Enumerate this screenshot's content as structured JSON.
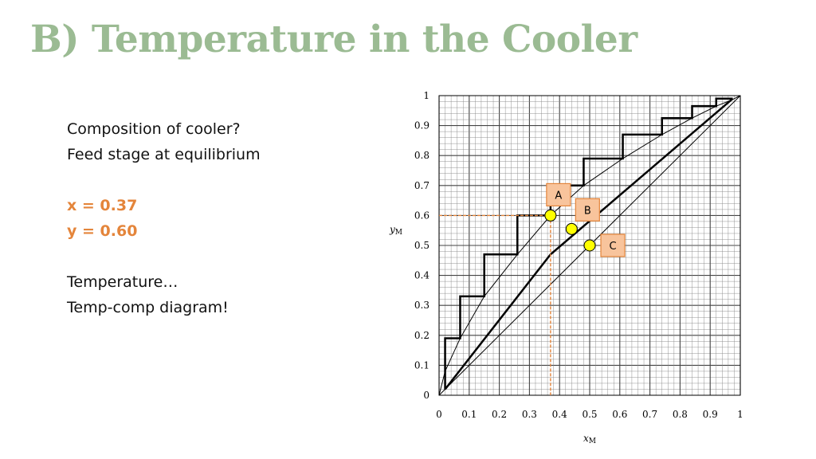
{
  "slide": {
    "title": "B) Temperature in the Cooler",
    "lines": [
      "Composition of cooler?",
      "Feed stage at equilibrium"
    ],
    "x_value": "x = 0.37",
    "y_value": "y = 0.60",
    "lines2": [
      "Temperature…",
      "Temp-comp diagram!"
    ]
  },
  "colors": {
    "title": "#9bbb93",
    "accent": "#e4853b",
    "marker": "#ffff00",
    "label_box": "#f8c49c"
  },
  "chart_data": {
    "type": "line",
    "xlabel": "x",
    "xlabel_sub": "M",
    "ylabel": "y",
    "ylabel_sub": "M",
    "xlim": [
      0,
      1
    ],
    "ylim": [
      0,
      1
    ],
    "grid": true,
    "x_ticks": [
      "0",
      "0.1",
      "0.2",
      "0.3",
      "0.4",
      "0.5",
      "0.6",
      "0.7",
      "0.8",
      "0.9",
      "1"
    ],
    "y_ticks": [
      "0",
      "0.1",
      "0.2",
      "0.3",
      "0.4",
      "0.5",
      "0.6",
      "0.7",
      "0.8",
      "0.9",
      "1"
    ],
    "equilibrium_curve": [
      [
        0,
        0
      ],
      [
        0.02,
        0.08
      ],
      [
        0.07,
        0.19
      ],
      [
        0.15,
        0.33
      ],
      [
        0.26,
        0.47
      ],
      [
        0.37,
        0.6
      ],
      [
        0.48,
        0.7
      ],
      [
        0.61,
        0.79
      ],
      [
        0.74,
        0.87
      ],
      [
        0.84,
        0.925
      ],
      [
        0.92,
        0.965
      ],
      [
        0.97,
        0.985
      ],
      [
        1,
        1
      ]
    ],
    "operating_line": [
      [
        0.02,
        0.02
      ],
      [
        0.37,
        0.47
      ],
      [
        0.975,
        0.99
      ]
    ],
    "diagonal": [
      [
        0,
        0
      ],
      [
        1,
        1
      ]
    ],
    "stages": [
      [
        0.975,
        0.99
      ],
      [
        0.92,
        0.99
      ],
      [
        0.92,
        0.965
      ],
      [
        0.84,
        0.965
      ],
      [
        0.84,
        0.925
      ],
      [
        0.74,
        0.925
      ],
      [
        0.74,
        0.87
      ],
      [
        0.61,
        0.87
      ],
      [
        0.61,
        0.79
      ],
      [
        0.48,
        0.79
      ],
      [
        0.48,
        0.7
      ],
      [
        0.37,
        0.7
      ],
      [
        0.37,
        0.6
      ],
      [
        0.26,
        0.6
      ],
      [
        0.26,
        0.47
      ],
      [
        0.15,
        0.47
      ],
      [
        0.15,
        0.33
      ],
      [
        0.07,
        0.33
      ],
      [
        0.07,
        0.19
      ],
      [
        0.02,
        0.19
      ],
      [
        0.02,
        0.08
      ],
      [
        0.02,
        0.02
      ]
    ],
    "guide_point": [
      0.37,
      0.6
    ],
    "points": [
      {
        "label": "A",
        "x": 0.37,
        "y": 0.6
      },
      {
        "label": "B",
        "x": 0.44,
        "y": 0.555
      },
      {
        "label": "C",
        "x": 0.5,
        "y": 0.5
      }
    ]
  }
}
